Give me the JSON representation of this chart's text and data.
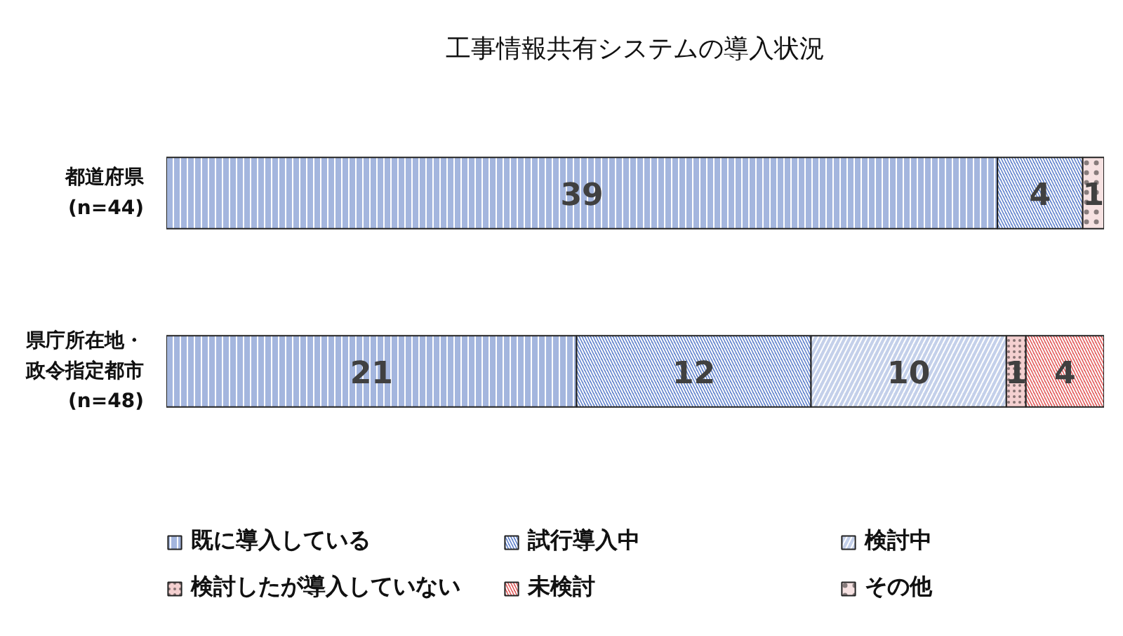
{
  "chart_data": [
    {
      "type": "bar",
      "orientation": "horizontal",
      "stacked": true,
      "data_labels": true,
      "tick_labels": "y",
      "title": "工事情報共有システムの導入状況",
      "categories": [
        "都道府県 (n=44)"
      ],
      "xlim": [
        0,
        44
      ],
      "series": [
        {
          "color": "#a4b6de",
          "values": [
            39
          ]
        },
        {
          "color": "#6182cc",
          "values": [
            4
          ]
        },
        {
          "color": "#c4d0ea",
          "values": [
            null
          ]
        },
        {
          "color": "#f4d0d0",
          "values": [
            null
          ]
        },
        {
          "color": "#e25c5c",
          "values": [
            null
          ]
        },
        {
          "color": "#f6e2e2",
          "values": [
            1
          ]
        }
      ]
    },
    {
      "type": "bar",
      "orientation": "horizontal",
      "stacked": true,
      "data_labels": true,
      "tick_labels": "y",
      "categories": [
        "県庁所在地・政令指定都市 (n=48)"
      ],
      "xlim": [
        0,
        48
      ],
      "legend": "bottom",
      "series": [
        {
          "name": "既に導入している",
          "color": "#a4b6de",
          "values": [
            21
          ]
        },
        {
          "name": "試行導入中",
          "color": "#6182cc",
          "values": [
            12
          ]
        },
        {
          "name": "検討中",
          "color": "#c4d0ea",
          "values": [
            10
          ]
        },
        {
          "name": "検討したが導入していない",
          "color": "#f4d0d0",
          "values": [
            1
          ]
        },
        {
          "name": "未検討",
          "color": "#e25c5c",
          "values": [
            4
          ]
        },
        {
          "name": "その他",
          "color": "#f6e2e2",
          "values": [
            null
          ]
        }
      ]
    }
  ]
}
